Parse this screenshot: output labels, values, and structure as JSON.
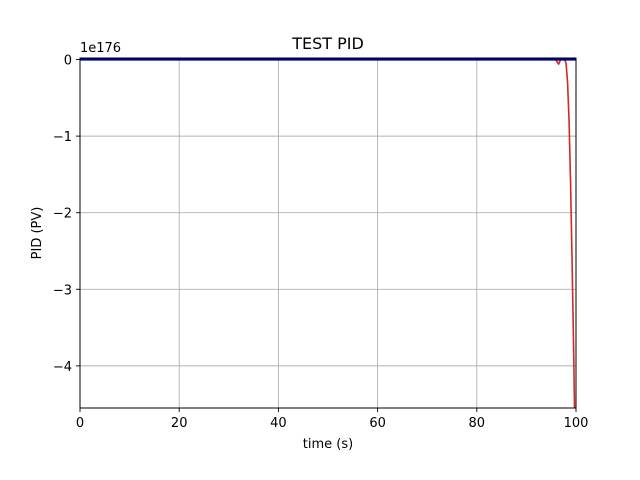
{
  "chart_data": {
    "type": "line",
    "title": "TEST PID",
    "xlabel": "time (s)",
    "ylabel": "PID (PV)",
    "y_multiplier_label": "1e176",
    "xlim": [
      0,
      100
    ],
    "ylim": [
      -4.55,
      0.02
    ],
    "x_scale": "linear",
    "y_units": "1e176",
    "x_ticks": [
      0,
      20,
      40,
      60,
      80,
      100
    ],
    "x_tick_labels": [
      "0",
      "20",
      "40",
      "60",
      "80",
      "100"
    ],
    "y_ticks": [
      0,
      -1,
      -2,
      -3,
      -4
    ],
    "y_tick_labels": [
      "0",
      "−1",
      "−2",
      "−3",
      "−4"
    ],
    "grid": true,
    "legend": "none",
    "series": [
      {
        "color": "#d62728",
        "x": [
          0,
          20,
          40,
          60,
          80,
          95.9,
          96.2,
          96.5,
          96.9,
          97.3,
          97.7,
          98.0,
          98.3,
          98.6,
          98.9,
          99.2,
          99.5,
          99.7
        ],
        "y": [
          0,
          0,
          0,
          0,
          0,
          0,
          -0.03,
          -0.06,
          0,
          0,
          0,
          -0.05,
          -0.3,
          -0.8,
          -1.6,
          -2.6,
          -3.7,
          -4.55
        ]
      },
      {
        "color": "#00008b",
        "x": [
          0,
          20,
          40,
          60,
          80,
          100
        ],
        "y": [
          0,
          0,
          0,
          0,
          0,
          0
        ]
      }
    ]
  }
}
